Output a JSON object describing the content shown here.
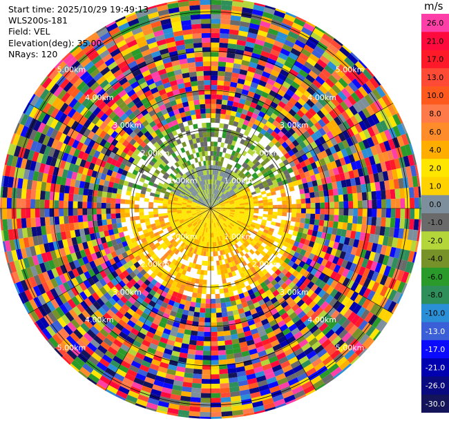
{
  "header": {
    "start_time": "Start time: 2025/10/29 19:49:13",
    "device": "WLS200s-181",
    "field": "Field: VEL",
    "elevation": "Elevation(deg): 35.00",
    "nrays": "NRays: 120"
  },
  "chart_data": {
    "type": "heatmap",
    "projection": "polar-ppi",
    "field": "VEL",
    "unit": "m/s",
    "range_rings_km": [
      1,
      2,
      3,
      4,
      5
    ],
    "range_labels": [
      "1.00km",
      "2.00km",
      "3.00km",
      "4.00km",
      "5.00km"
    ],
    "max_range_km": 5.35,
    "n_rays": 120,
    "colorbar": {
      "ticks": [
        "26.0",
        "21.0",
        "17.0",
        "13.0",
        "10.0",
        "8.0",
        "6.0",
        "4.0",
        "2.0",
        "1.0",
        "0.0",
        "-1.0",
        "-2.0",
        "-4.0",
        "-6.0",
        "-8.0",
        "-10.0",
        "-13.0",
        "-17.0",
        "-21.0",
        "-26.0",
        "-30.0"
      ],
      "colors": [
        "#ff3fa8",
        "#ff0a3c",
        "#ff1a2a",
        "#ff4a36",
        "#ff5a1e",
        "#ff7a4a",
        "#ff8c2a",
        "#ffae00",
        "#ffe600",
        "#ffd200",
        "#7d8f9c",
        "#6a6a6a",
        "#b4d63a",
        "#78922a",
        "#2a9a2a",
        "#2e8f5a",
        "#2a8fd6",
        "#3a5fd6",
        "#0a0aff",
        "#0000b0",
        "#0a0a80",
        "#14145a"
      ]
    }
  }
}
